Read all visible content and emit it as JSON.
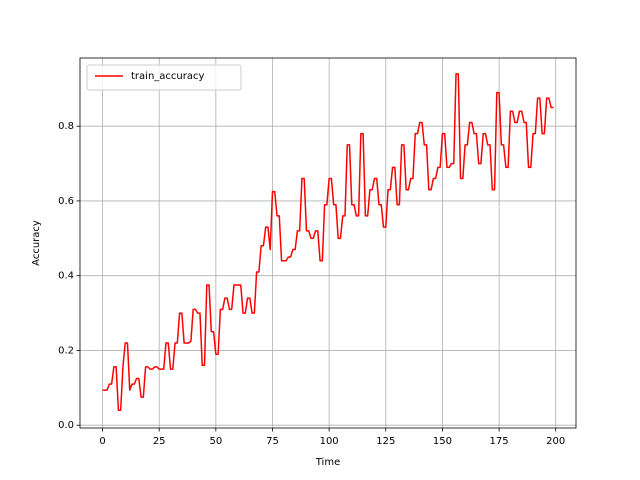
{
  "chart_data": {
    "type": "line",
    "xlabel": "Time",
    "ylabel": "Accuracy",
    "x": [
      0,
      1,
      2,
      3,
      4,
      5,
      6,
      7,
      8,
      9,
      10,
      11,
      12,
      13,
      14,
      15,
      16,
      17,
      18,
      19,
      20,
      21,
      22,
      23,
      24,
      25,
      26,
      27,
      28,
      29,
      30,
      31,
      32,
      33,
      34,
      35,
      36,
      37,
      38,
      39,
      40,
      41,
      42,
      43,
      44,
      45,
      46,
      47,
      48,
      49,
      50,
      51,
      52,
      53,
      54,
      55,
      56,
      57,
      58,
      59,
      60,
      61,
      62,
      63,
      64,
      65,
      66,
      67,
      68,
      69,
      70,
      71,
      72,
      73,
      74,
      75,
      76,
      77,
      78,
      79,
      80,
      81,
      82,
      83,
      84,
      85,
      86,
      87,
      88,
      89,
      90,
      91,
      92,
      93,
      94,
      95,
      96,
      97,
      98,
      99,
      100,
      101,
      102,
      103,
      104,
      105,
      106,
      107,
      108,
      109,
      110,
      111,
      112,
      113,
      114,
      115,
      116,
      117,
      118,
      119,
      120,
      121,
      122,
      123,
      124,
      125,
      126,
      127,
      128,
      129,
      130,
      131,
      132,
      133,
      134,
      135,
      136,
      137,
      138,
      139,
      140,
      141,
      142,
      143,
      144,
      145,
      146,
      147,
      148,
      149,
      150,
      151,
      152,
      153,
      154,
      155,
      156,
      157,
      158,
      159,
      160,
      161,
      162,
      163,
      164,
      165,
      166,
      167,
      168,
      169,
      170,
      171,
      172,
      173,
      174,
      175,
      176,
      177,
      178,
      179,
      180,
      181,
      182,
      183,
      184,
      185,
      186,
      187,
      188,
      189,
      190,
      191,
      192,
      193,
      194,
      195,
      196,
      197,
      198,
      199
    ],
    "series": [
      {
        "name": "train_accuracy",
        "color": "#ff0000",
        "values": [
          0.094,
          0.094,
          0.094,
          0.11,
          0.11,
          0.156,
          0.156,
          0.04,
          0.04,
          0.156,
          0.22,
          0.22,
          0.094,
          0.11,
          0.11,
          0.125,
          0.125,
          0.075,
          0.075,
          0.156,
          0.156,
          0.15,
          0.15,
          0.156,
          0.156,
          0.15,
          0.15,
          0.15,
          0.22,
          0.22,
          0.15,
          0.15,
          0.22,
          0.22,
          0.3,
          0.3,
          0.22,
          0.22,
          0.22,
          0.225,
          0.31,
          0.31,
          0.3,
          0.3,
          0.16,
          0.16,
          0.375,
          0.375,
          0.25,
          0.25,
          0.19,
          0.19,
          0.31,
          0.31,
          0.34,
          0.34,
          0.31,
          0.31,
          0.375,
          0.375,
          0.375,
          0.375,
          0.3,
          0.3,
          0.34,
          0.34,
          0.3,
          0.3,
          0.41,
          0.41,
          0.48,
          0.48,
          0.53,
          0.53,
          0.47,
          0.625,
          0.625,
          0.56,
          0.56,
          0.44,
          0.44,
          0.44,
          0.45,
          0.45,
          0.47,
          0.47,
          0.52,
          0.52,
          0.66,
          0.66,
          0.52,
          0.52,
          0.5,
          0.5,
          0.52,
          0.52,
          0.44,
          0.44,
          0.59,
          0.59,
          0.66,
          0.66,
          0.59,
          0.59,
          0.5,
          0.5,
          0.56,
          0.56,
          0.75,
          0.75,
          0.59,
          0.59,
          0.56,
          0.56,
          0.78,
          0.78,
          0.56,
          0.56,
          0.63,
          0.63,
          0.66,
          0.66,
          0.59,
          0.59,
          0.53,
          0.53,
          0.63,
          0.63,
          0.69,
          0.69,
          0.59,
          0.59,
          0.75,
          0.75,
          0.63,
          0.63,
          0.66,
          0.66,
          0.78,
          0.78,
          0.81,
          0.81,
          0.75,
          0.75,
          0.63,
          0.63,
          0.66,
          0.66,
          0.69,
          0.69,
          0.78,
          0.78,
          0.69,
          0.69,
          0.7,
          0.7,
          0.94,
          0.94,
          0.66,
          0.66,
          0.75,
          0.75,
          0.81,
          0.81,
          0.78,
          0.78,
          0.7,
          0.7,
          0.78,
          0.78,
          0.75,
          0.75,
          0.63,
          0.63,
          0.89,
          0.89,
          0.75,
          0.75,
          0.69,
          0.69,
          0.84,
          0.84,
          0.81,
          0.81,
          0.84,
          0.84,
          0.81,
          0.81,
          0.69,
          0.69,
          0.78,
          0.78,
          0.875,
          0.875,
          0.78,
          0.78,
          0.875,
          0.875,
          0.85,
          0.85
        ]
      }
    ],
    "xlim": [
      -9.95,
      208.95
    ],
    "xticks": [
      0,
      25,
      50,
      75,
      100,
      125,
      150,
      175,
      200
    ],
    "ylim": [
      -0.0075,
      0.9825
    ],
    "yticks": [
      {
        "value": 0,
        "label": "0.0"
      },
      0.2,
      0.4,
      0.6,
      0.8
    ],
    "grid": true,
    "legend": "upper left"
  }
}
